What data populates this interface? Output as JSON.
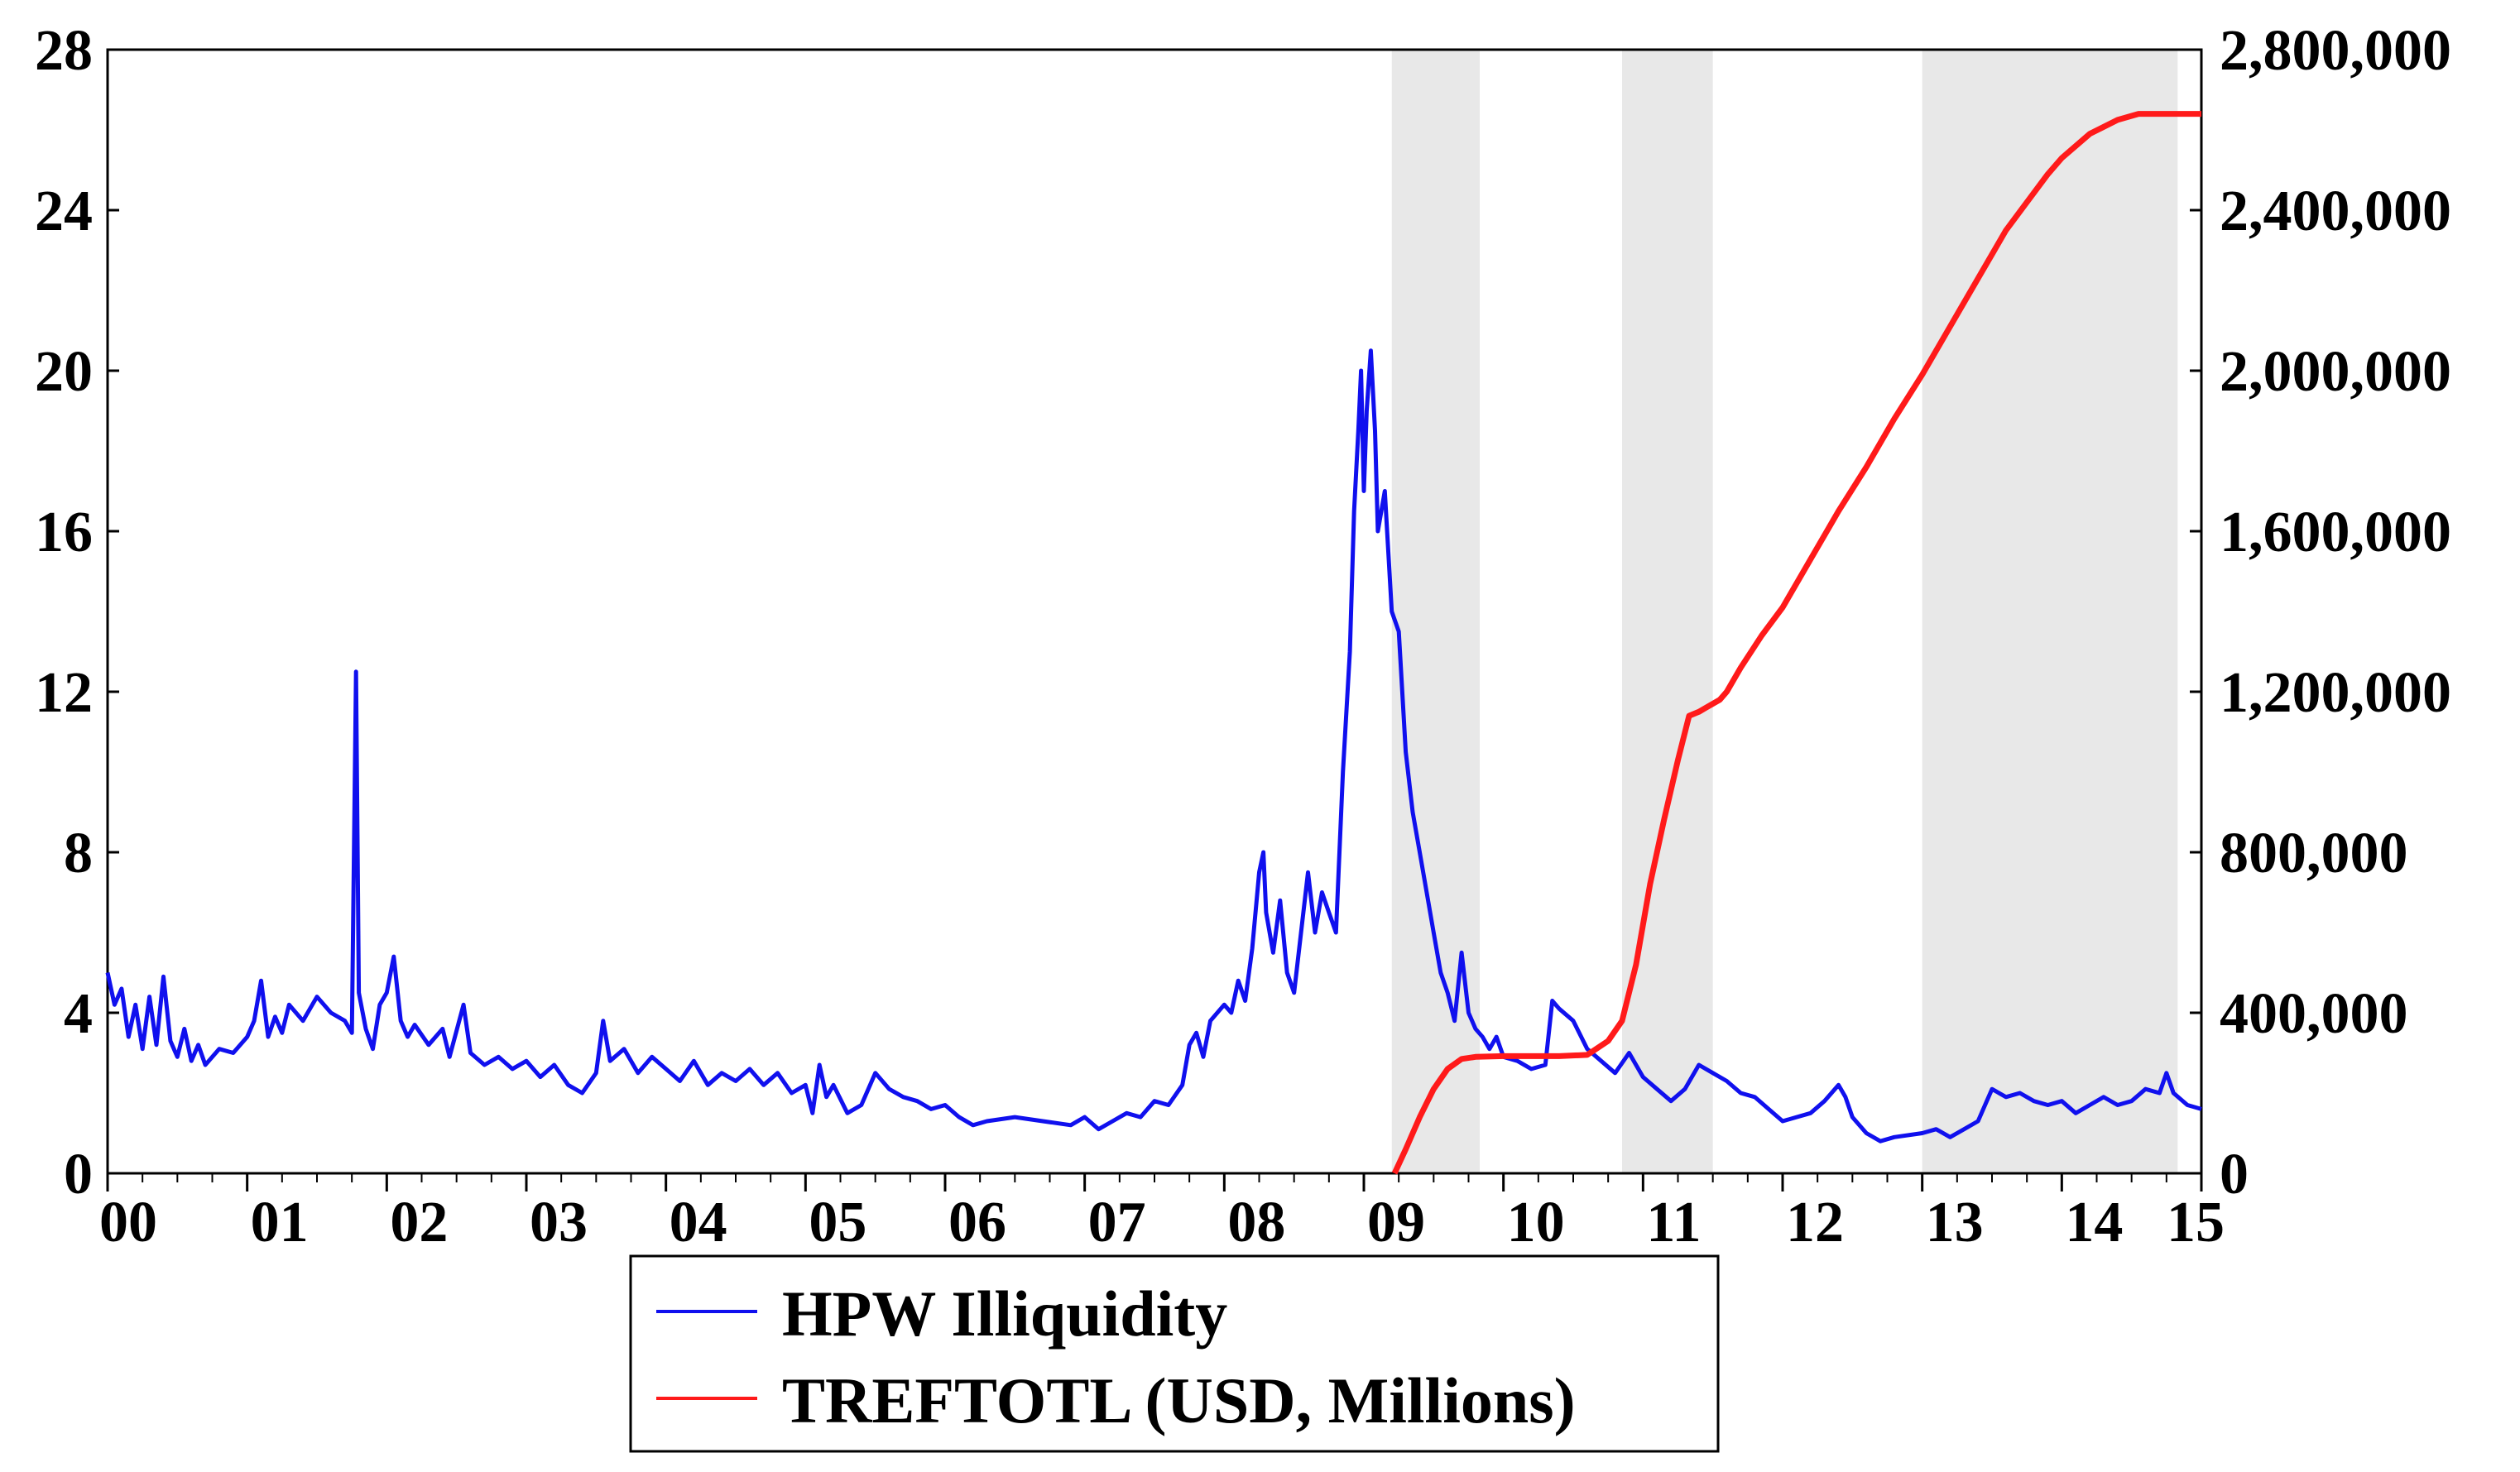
{
  "chart_data": {
    "type": "line",
    "title": "",
    "xlabel": "",
    "x_tick_labels": [
      "00",
      "01",
      "02",
      "03",
      "04",
      "05",
      "06",
      "07",
      "08",
      "09",
      "10",
      "11",
      "12",
      "13",
      "14",
      "15"
    ],
    "x_range": [
      2000,
      2015.0
    ],
    "y_left": {
      "label": "",
      "range": [
        0,
        28
      ],
      "ticks": [
        0,
        4,
        8,
        12,
        16,
        20,
        24,
        28
      ],
      "tick_labels": [
        "0",
        "4",
        "8",
        "12",
        "16",
        "20",
        "24",
        "28"
      ]
    },
    "y_right": {
      "label": "",
      "range": [
        0,
        2800000
      ],
      "ticks": [
        0,
        400000,
        800000,
        1200000,
        1600000,
        2000000,
        2400000,
        2800000
      ],
      "tick_labels": [
        "0",
        "400,000",
        "800,000",
        "1,200,000",
        "1,600,000",
        "2,000,000",
        "2,400,000",
        "2,800,000"
      ]
    },
    "shaded_periods": [
      [
        2009.2,
        2009.83
      ],
      [
        2010.85,
        2011.5
      ],
      [
        2013.0,
        2014.83
      ]
    ],
    "series": [
      {
        "name": "HPW Illiquidity",
        "axis": "left",
        "color": "#1010ee",
        "points": [
          [
            2000.0,
            5.0
          ],
          [
            2000.05,
            4.2
          ],
          [
            2000.1,
            4.6
          ],
          [
            2000.15,
            3.4
          ],
          [
            2000.2,
            4.2
          ],
          [
            2000.25,
            3.1
          ],
          [
            2000.3,
            4.4
          ],
          [
            2000.35,
            3.2
          ],
          [
            2000.4,
            4.9
          ],
          [
            2000.45,
            3.3
          ],
          [
            2000.5,
            2.9
          ],
          [
            2000.55,
            3.6
          ],
          [
            2000.6,
            2.8
          ],
          [
            2000.65,
            3.2
          ],
          [
            2000.7,
            2.7
          ],
          [
            2000.8,
            3.1
          ],
          [
            2000.9,
            3.0
          ],
          [
            2001.0,
            3.4
          ],
          [
            2001.05,
            3.8
          ],
          [
            2001.1,
            4.8
          ],
          [
            2001.15,
            3.4
          ],
          [
            2001.2,
            3.9
          ],
          [
            2001.25,
            3.5
          ],
          [
            2001.3,
            4.2
          ],
          [
            2001.4,
            3.8
          ],
          [
            2001.5,
            4.4
          ],
          [
            2001.6,
            4.0
          ],
          [
            2001.7,
            3.8
          ],
          [
            2001.75,
            3.5
          ],
          [
            2001.78,
            12.5
          ],
          [
            2001.8,
            4.5
          ],
          [
            2001.85,
            3.6
          ],
          [
            2001.9,
            3.1
          ],
          [
            2001.95,
            4.2
          ],
          [
            2002.0,
            4.5
          ],
          [
            2002.05,
            5.4
          ],
          [
            2002.1,
            3.8
          ],
          [
            2002.15,
            3.4
          ],
          [
            2002.2,
            3.7
          ],
          [
            2002.3,
            3.2
          ],
          [
            2002.4,
            3.6
          ],
          [
            2002.45,
            2.9
          ],
          [
            2002.55,
            4.2
          ],
          [
            2002.6,
            3.0
          ],
          [
            2002.7,
            2.7
          ],
          [
            2002.8,
            2.9
          ],
          [
            2002.9,
            2.6
          ],
          [
            2003.0,
            2.8
          ],
          [
            2003.1,
            2.4
          ],
          [
            2003.2,
            2.7
          ],
          [
            2003.3,
            2.2
          ],
          [
            2003.4,
            2.0
          ],
          [
            2003.5,
            2.5
          ],
          [
            2003.55,
            3.8
          ],
          [
            2003.6,
            2.8
          ],
          [
            2003.7,
            3.1
          ],
          [
            2003.8,
            2.5
          ],
          [
            2003.9,
            2.9
          ],
          [
            2004.0,
            2.6
          ],
          [
            2004.1,
            2.3
          ],
          [
            2004.2,
            2.8
          ],
          [
            2004.3,
            2.2
          ],
          [
            2004.4,
            2.5
          ],
          [
            2004.5,
            2.3
          ],
          [
            2004.6,
            2.6
          ],
          [
            2004.7,
            2.2
          ],
          [
            2004.8,
            2.5
          ],
          [
            2004.9,
            2.0
          ],
          [
            2005.0,
            2.2
          ],
          [
            2005.05,
            1.5
          ],
          [
            2005.1,
            2.7
          ],
          [
            2005.15,
            1.9
          ],
          [
            2005.2,
            2.2
          ],
          [
            2005.3,
            1.5
          ],
          [
            2005.4,
            1.7
          ],
          [
            2005.5,
            2.5
          ],
          [
            2005.6,
            2.1
          ],
          [
            2005.7,
            1.9
          ],
          [
            2005.8,
            1.8
          ],
          [
            2005.9,
            1.6
          ],
          [
            2006.0,
            1.7
          ],
          [
            2006.1,
            1.4
          ],
          [
            2006.2,
            1.2
          ],
          [
            2006.3,
            1.3
          ],
          [
            2006.5,
            1.4
          ],
          [
            2006.7,
            1.3
          ],
          [
            2006.9,
            1.2
          ],
          [
            2007.0,
            1.4
          ],
          [
            2007.1,
            1.1
          ],
          [
            2007.2,
            1.3
          ],
          [
            2007.3,
            1.5
          ],
          [
            2007.4,
            1.4
          ],
          [
            2007.5,
            1.8
          ],
          [
            2007.6,
            1.7
          ],
          [
            2007.7,
            2.2
          ],
          [
            2007.75,
            3.2
          ],
          [
            2007.8,
            3.5
          ],
          [
            2007.85,
            2.9
          ],
          [
            2007.9,
            3.8
          ],
          [
            2008.0,
            4.2
          ],
          [
            2008.05,
            4.0
          ],
          [
            2008.1,
            4.8
          ],
          [
            2008.15,
            4.3
          ],
          [
            2008.2,
            5.6
          ],
          [
            2008.25,
            7.5
          ],
          [
            2008.28,
            8.0
          ],
          [
            2008.3,
            6.5
          ],
          [
            2008.35,
            5.5
          ],
          [
            2008.4,
            6.8
          ],
          [
            2008.45,
            5.0
          ],
          [
            2008.5,
            4.5
          ],
          [
            2008.55,
            6.0
          ],
          [
            2008.6,
            7.5
          ],
          [
            2008.65,
            6.0
          ],
          [
            2008.7,
            7.0
          ],
          [
            2008.75,
            6.5
          ],
          [
            2008.8,
            6.0
          ],
          [
            2008.85,
            10.0
          ],
          [
            2008.9,
            13.0
          ],
          [
            2008.93,
            16.5
          ],
          [
            2008.96,
            18.5
          ],
          [
            2008.98,
            20.0
          ],
          [
            2009.0,
            17.0
          ],
          [
            2009.02,
            19.0
          ],
          [
            2009.05,
            20.5
          ],
          [
            2009.08,
            18.5
          ],
          [
            2009.1,
            16.0
          ],
          [
            2009.15,
            17.0
          ],
          [
            2009.2,
            14.0
          ],
          [
            2009.25,
            13.5
          ],
          [
            2009.3,
            10.5
          ],
          [
            2009.35,
            9.0
          ],
          [
            2009.4,
            8.0
          ],
          [
            2009.5,
            6.0
          ],
          [
            2009.55,
            5.0
          ],
          [
            2009.6,
            4.5
          ],
          [
            2009.65,
            3.8
          ],
          [
            2009.7,
            5.5
          ],
          [
            2009.75,
            4.0
          ],
          [
            2009.8,
            3.6
          ],
          [
            2009.85,
            3.4
          ],
          [
            2009.9,
            3.1
          ],
          [
            2009.95,
            3.4
          ],
          [
            2010.0,
            2.9
          ],
          [
            2010.1,
            2.8
          ],
          [
            2010.2,
            2.6
          ],
          [
            2010.3,
            2.7
          ],
          [
            2010.35,
            4.3
          ],
          [
            2010.4,
            4.1
          ],
          [
            2010.5,
            3.8
          ],
          [
            2010.6,
            3.1
          ],
          [
            2010.7,
            2.8
          ],
          [
            2010.8,
            2.5
          ],
          [
            2010.9,
            3.0
          ],
          [
            2011.0,
            2.4
          ],
          [
            2011.1,
            2.1
          ],
          [
            2011.2,
            1.8
          ],
          [
            2011.3,
            2.1
          ],
          [
            2011.4,
            2.7
          ],
          [
            2011.5,
            2.5
          ],
          [
            2011.6,
            2.3
          ],
          [
            2011.7,
            2.0
          ],
          [
            2011.8,
            1.9
          ],
          [
            2011.9,
            1.6
          ],
          [
            2012.0,
            1.3
          ],
          [
            2012.1,
            1.4
          ],
          [
            2012.2,
            1.5
          ],
          [
            2012.3,
            1.8
          ],
          [
            2012.4,
            2.2
          ],
          [
            2012.45,
            1.9
          ],
          [
            2012.5,
            1.4
          ],
          [
            2012.6,
            1.0
          ],
          [
            2012.7,
            0.8
          ],
          [
            2012.8,
            0.9
          ],
          [
            2013.0,
            1.0
          ],
          [
            2013.1,
            1.1
          ],
          [
            2013.2,
            0.9
          ],
          [
            2013.3,
            1.1
          ],
          [
            2013.4,
            1.3
          ],
          [
            2013.45,
            1.7
          ],
          [
            2013.5,
            2.1
          ],
          [
            2013.6,
            1.9
          ],
          [
            2013.7,
            2.0
          ],
          [
            2013.8,
            1.8
          ],
          [
            2013.9,
            1.7
          ],
          [
            2014.0,
            1.8
          ],
          [
            2014.1,
            1.5
          ],
          [
            2014.2,
            1.7
          ],
          [
            2014.3,
            1.9
          ],
          [
            2014.4,
            1.7
          ],
          [
            2014.5,
            1.8
          ],
          [
            2014.6,
            2.1
          ],
          [
            2014.7,
            2.0
          ],
          [
            2014.75,
            2.5
          ],
          [
            2014.8,
            2.0
          ],
          [
            2014.9,
            1.7
          ],
          [
            2015.0,
            1.6
          ]
        ]
      },
      {
        "name": "TREFTOTL (USD, Millions)",
        "axis": "right",
        "color": "#ff1a1a",
        "points": [
          [
            2009.22,
            0
          ],
          [
            2009.3,
            60000
          ],
          [
            2009.4,
            140000
          ],
          [
            2009.5,
            210000
          ],
          [
            2009.6,
            260000
          ],
          [
            2009.7,
            285000
          ],
          [
            2009.8,
            290000
          ],
          [
            2010.0,
            292000
          ],
          [
            2010.2,
            292000
          ],
          [
            2010.4,
            292000
          ],
          [
            2010.6,
            295000
          ],
          [
            2010.75,
            330000
          ],
          [
            2010.85,
            380000
          ],
          [
            2010.95,
            520000
          ],
          [
            2011.05,
            720000
          ],
          [
            2011.15,
            880000
          ],
          [
            2011.25,
            1030000
          ],
          [
            2011.33,
            1140000
          ],
          [
            2011.4,
            1150000
          ],
          [
            2011.45,
            1160000
          ],
          [
            2011.55,
            1180000
          ],
          [
            2011.6,
            1200000
          ],
          [
            2011.7,
            1260000
          ],
          [
            2011.85,
            1340000
          ],
          [
            2012.0,
            1410000
          ],
          [
            2012.2,
            1530000
          ],
          [
            2012.4,
            1650000
          ],
          [
            2012.6,
            1760000
          ],
          [
            2012.8,
            1880000
          ],
          [
            2013.0,
            1990000
          ],
          [
            2013.2,
            2110000
          ],
          [
            2013.4,
            2230000
          ],
          [
            2013.6,
            2350000
          ],
          [
            2013.75,
            2420000
          ],
          [
            2013.9,
            2490000
          ],
          [
            2014.0,
            2530000
          ],
          [
            2014.2,
            2590000
          ],
          [
            2014.4,
            2625000
          ],
          [
            2014.55,
            2640000
          ],
          [
            2014.7,
            2640000
          ],
          [
            2015.0,
            2640000
          ]
        ]
      }
    ],
    "legend": {
      "position": "bottom-center",
      "entries": [
        "HPW Illiquidity",
        "TREFTOTL (USD, Millions)"
      ]
    }
  }
}
